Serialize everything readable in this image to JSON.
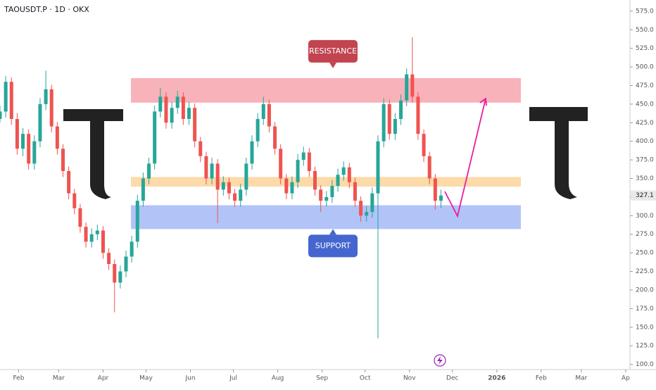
{
  "chart_data": {
    "type": "candlestick",
    "title": "TAOUSDT.P · 1D · OKX",
    "up_color": "#26a69a",
    "down_color": "#ef5350",
    "candles": [
      [
        430,
        448,
        425,
        440
      ],
      [
        440,
        488,
        432,
        480
      ],
      [
        480,
        486,
        422,
        430
      ],
      [
        430,
        438,
        382,
        390
      ],
      [
        390,
        418,
        380,
        410
      ],
      [
        410,
        416,
        362,
        370
      ],
      [
        370,
        408,
        362,
        400
      ],
      [
        400,
        458,
        392,
        450
      ],
      [
        450,
        495,
        442,
        470
      ],
      [
        470,
        476,
        412,
        420
      ],
      [
        420,
        426,
        382,
        390
      ],
      [
        390,
        396,
        352,
        360
      ],
      [
        360,
        366,
        322,
        330
      ],
      [
        330,
        336,
        302,
        310
      ],
      [
        310,
        316,
        277,
        285
      ],
      [
        285,
        291,
        257,
        265
      ],
      [
        265,
        283,
        257,
        275
      ],
      [
        275,
        288,
        267,
        280
      ],
      [
        280,
        286,
        242,
        250
      ],
      [
        250,
        256,
        227,
        235
      ],
      [
        235,
        241,
        170,
        210
      ],
      [
        210,
        233,
        202,
        225
      ],
      [
        225,
        253,
        217,
        245
      ],
      [
        245,
        273,
        237,
        265
      ],
      [
        265,
        328,
        257,
        320
      ],
      [
        320,
        358,
        312,
        350
      ],
      [
        350,
        378,
        342,
        370
      ],
      [
        370,
        448,
        362,
        440
      ],
      [
        440,
        472,
        432,
        460
      ],
      [
        460,
        466,
        417,
        425
      ],
      [
        425,
        453,
        417,
        445
      ],
      [
        445,
        468,
        437,
        460
      ],
      [
        460,
        466,
        422,
        430
      ],
      [
        430,
        453,
        422,
        445
      ],
      [
        445,
        451,
        392,
        400
      ],
      [
        400,
        406,
        372,
        380
      ],
      [
        380,
        386,
        342,
        350
      ],
      [
        350,
        378,
        342,
        370
      ],
      [
        370,
        376,
        290,
        335
      ],
      [
        335,
        353,
        327,
        345
      ],
      [
        345,
        351,
        322,
        330
      ],
      [
        330,
        336,
        312,
        320
      ],
      [
        320,
        343,
        312,
        335
      ],
      [
        335,
        378,
        327,
        370
      ],
      [
        370,
        408,
        362,
        400
      ],
      [
        400,
        438,
        392,
        430
      ],
      [
        430,
        460,
        422,
        450
      ],
      [
        450,
        456,
        412,
        420
      ],
      [
        420,
        426,
        382,
        390
      ],
      [
        390,
        396,
        342,
        350
      ],
      [
        350,
        356,
        322,
        330
      ],
      [
        330,
        353,
        322,
        345
      ],
      [
        345,
        383,
        337,
        375
      ],
      [
        375,
        393,
        367,
        385
      ],
      [
        385,
        391,
        352,
        360
      ],
      [
        360,
        366,
        327,
        335
      ],
      [
        335,
        341,
        305,
        320
      ],
      [
        320,
        333,
        312,
        325
      ],
      [
        325,
        348,
        317,
        340
      ],
      [
        340,
        363,
        332,
        355
      ],
      [
        355,
        373,
        347,
        365
      ],
      [
        365,
        371,
        337,
        345
      ],
      [
        345,
        351,
        312,
        320
      ],
      [
        320,
        326,
        292,
        300
      ],
      [
        300,
        313,
        292,
        305
      ],
      [
        305,
        338,
        297,
        330
      ],
      [
        330,
        408,
        135,
        400
      ],
      [
        400,
        458,
        392,
        450
      ],
      [
        450,
        456,
        402,
        410
      ],
      [
        410,
        438,
        402,
        430
      ],
      [
        430,
        463,
        422,
        455
      ],
      [
        455,
        498,
        447,
        490
      ],
      [
        490,
        540,
        452,
        460
      ],
      [
        460,
        466,
        402,
        410
      ],
      [
        410,
        416,
        372,
        380
      ],
      [
        380,
        386,
        342,
        350
      ],
      [
        350,
        356,
        308,
        320
      ],
      [
        320,
        335,
        310,
        327.1
      ]
    ],
    "xlim": [
      0,
      110
    ],
    "xticks": [
      {
        "value": 3.25,
        "label": "Feb"
      },
      {
        "value": 10.25,
        "label": "Mar"
      },
      {
        "value": 18,
        "label": "Apr"
      },
      {
        "value": 25.5,
        "label": "May"
      },
      {
        "value": 33.25,
        "label": "Jun"
      },
      {
        "value": 40.75,
        "label": "Jul"
      },
      {
        "value": 48.5,
        "label": "Aug"
      },
      {
        "value": 56.25,
        "label": "Sep"
      },
      {
        "value": 63.75,
        "label": "Oct"
      },
      {
        "value": 71.5,
        "label": "Nov"
      },
      {
        "value": 79,
        "label": "Dec"
      },
      {
        "value": 86.75,
        "label": "2026"
      },
      {
        "value": 94.5,
        "label": "Feb"
      },
      {
        "value": 101.5,
        "label": "Mar"
      },
      {
        "value": 109.25,
        "label": "Ap"
      }
    ],
    "ylim": [
      93,
      590
    ],
    "yticks": [
      {
        "value": 100,
        "label": "100.0"
      },
      {
        "value": 125,
        "label": "125.0"
      },
      {
        "value": 150,
        "label": "150.0"
      },
      {
        "value": 175,
        "label": "175.0"
      },
      {
        "value": 200,
        "label": "200.0"
      },
      {
        "value": 225,
        "label": "225.0"
      },
      {
        "value": 250,
        "label": "250.0"
      },
      {
        "value": 275,
        "label": "275.0"
      },
      {
        "value": 300,
        "label": "300.0"
      },
      {
        "value": 325,
        "label": "325.0"
      },
      {
        "value": 350,
        "label": "350.0"
      },
      {
        "value": 375,
        "label": "375.0"
      },
      {
        "value": 400,
        "label": "400.0"
      },
      {
        "value": 425,
        "label": "425.0"
      },
      {
        "value": 450,
        "label": "450.0"
      },
      {
        "value": 475,
        "label": "475.0"
      },
      {
        "value": 500,
        "label": "500.0"
      },
      {
        "value": 525,
        "label": "525.0"
      },
      {
        "value": 550,
        "label": "550.0"
      },
      {
        "value": 575,
        "label": "575.0"
      }
    ],
    "zones": [
      {
        "name": "RESISTANCE",
        "range": [
          452,
          485
        ],
        "color": "#f7a5ad"
      },
      {
        "range": [
          339,
          352
        ],
        "color": "#fdd39b"
      },
      {
        "name": "SUPPORT",
        "range": [
          282,
          314
        ],
        "color": "#a5b8f7"
      }
    ]
  }
}
